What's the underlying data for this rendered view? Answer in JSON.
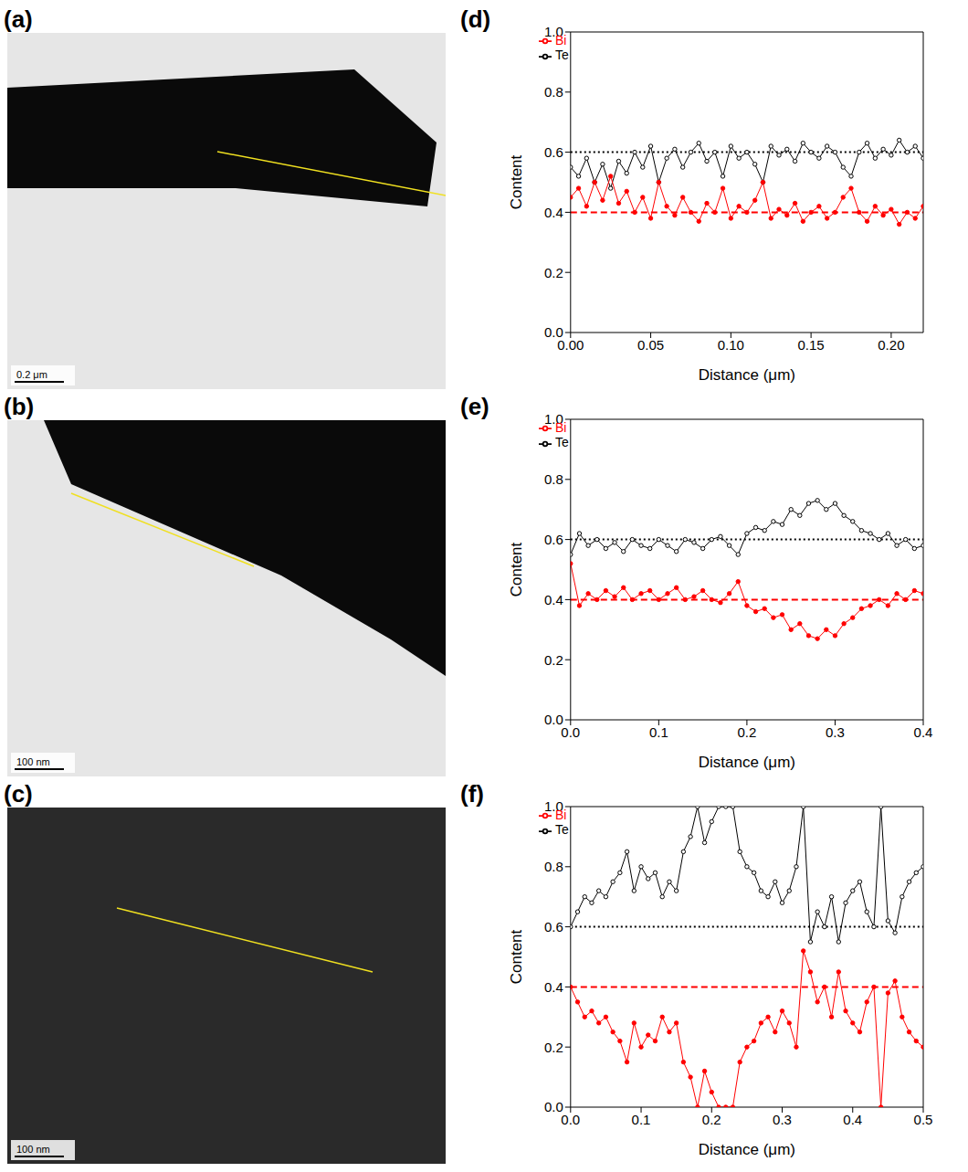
{
  "images": [
    {
      "label": "(a)",
      "scale_bar": "0.2 μm"
    },
    {
      "label": "(b)",
      "scale_bar": "100 nm"
    },
    {
      "label": "(c)",
      "scale_bar": "100 nm"
    }
  ],
  "chart_data": [
    {
      "type": "line",
      "title": "(d)",
      "x_label": "Distance (μm)",
      "y_label": "Content",
      "legend": "upper left",
      "xlim": [
        0,
        0.22
      ],
      "xticks": [
        {
          "value": 0,
          "label": "0.00"
        },
        {
          "value": 0.05,
          "label": "0.05"
        },
        {
          "value": 0.1,
          "label": "0.10"
        },
        {
          "value": 0.15,
          "label": "0.15"
        },
        {
          "value": 0.2,
          "label": "0.20"
        }
      ],
      "ylim": [
        0,
        1
      ],
      "yticks": [
        {
          "value": 0,
          "label": "0.0"
        },
        {
          "value": 0.2,
          "label": "0.2"
        },
        {
          "value": 0.4,
          "label": "0.4"
        },
        {
          "value": 0.6,
          "label": "0.6"
        },
        {
          "value": 0.8,
          "label": "0.8"
        },
        {
          "value": 1,
          "label": "1.0"
        }
      ],
      "hlines": [
        {
          "y": 0.6,
          "color": "#000000",
          "line_style": "dotted"
        },
        {
          "y": 0.4,
          "color": "#ff0000",
          "line_style": "dashed"
        }
      ],
      "x": [
        0,
        0.005,
        0.01,
        0.015,
        0.02,
        0.025,
        0.03,
        0.035,
        0.04,
        0.045,
        0.05,
        0.055,
        0.06,
        0.065,
        0.07,
        0.075,
        0.08,
        0.085,
        0.09,
        0.095,
        0.1,
        0.105,
        0.11,
        0.115,
        0.12,
        0.125,
        0.13,
        0.135,
        0.14,
        0.145,
        0.15,
        0.155,
        0.16,
        0.165,
        0.17,
        0.175,
        0.18,
        0.185,
        0.19,
        0.195,
        0.2,
        0.205,
        0.21,
        0.215,
        0.22
      ],
      "series": [
        {
          "name": "Te",
          "color": "#000000",
          "marker": "open_circle",
          "line_style": "solid",
          "values": [
            0.55,
            0.52,
            0.58,
            0.5,
            0.56,
            0.48,
            0.57,
            0.53,
            0.6,
            0.55,
            0.62,
            0.5,
            0.58,
            0.61,
            0.55,
            0.6,
            0.63,
            0.57,
            0.6,
            0.52,
            0.62,
            0.58,
            0.6,
            0.56,
            0.5,
            0.62,
            0.59,
            0.61,
            0.57,
            0.63,
            0.6,
            0.58,
            0.62,
            0.6,
            0.55,
            0.52,
            0.6,
            0.63,
            0.58,
            0.61,
            0.59,
            0.64,
            0.6,
            0.62,
            0.58
          ]
        },
        {
          "name": "Bi",
          "color": "#ff0000",
          "marker": "circle",
          "line_style": "solid",
          "values": [
            0.45,
            0.48,
            0.42,
            0.5,
            0.44,
            0.52,
            0.43,
            0.47,
            0.4,
            0.45,
            0.38,
            0.5,
            0.42,
            0.39,
            0.45,
            0.4,
            0.37,
            0.43,
            0.4,
            0.48,
            0.38,
            0.42,
            0.4,
            0.44,
            0.5,
            0.38,
            0.41,
            0.39,
            0.43,
            0.37,
            0.4,
            0.42,
            0.38,
            0.4,
            0.45,
            0.48,
            0.4,
            0.37,
            0.42,
            0.39,
            0.41,
            0.36,
            0.4,
            0.38,
            0.42
          ]
        }
      ]
    },
    {
      "type": "line",
      "title": "(e)",
      "x_label": "Distance (μm)",
      "y_label": "Content",
      "legend": "upper left",
      "xlim": [
        0,
        0.4
      ],
      "xticks": [
        {
          "value": 0,
          "label": "0.0"
        },
        {
          "value": 0.1,
          "label": "0.1"
        },
        {
          "value": 0.2,
          "label": "0.2"
        },
        {
          "value": 0.3,
          "label": "0.3"
        },
        {
          "value": 0.4,
          "label": "0.4"
        }
      ],
      "ylim": [
        0,
        1
      ],
      "yticks": [
        {
          "value": 0,
          "label": "0.0"
        },
        {
          "value": 0.2,
          "label": "0.2"
        },
        {
          "value": 0.4,
          "label": "0.4"
        },
        {
          "value": 0.6,
          "label": "0.6"
        },
        {
          "value": 0.8,
          "label": "0.8"
        },
        {
          "value": 1,
          "label": "1.0"
        }
      ],
      "hlines": [
        {
          "y": 0.6,
          "color": "#000000",
          "line_style": "dotted"
        },
        {
          "y": 0.4,
          "color": "#ff0000",
          "line_style": "dashed"
        }
      ],
      "x": [
        0,
        0.01,
        0.02,
        0.03,
        0.04,
        0.05,
        0.06,
        0.07,
        0.08,
        0.09,
        0.1,
        0.11,
        0.12,
        0.13,
        0.14,
        0.15,
        0.16,
        0.17,
        0.18,
        0.19,
        0.2,
        0.21,
        0.22,
        0.23,
        0.24,
        0.25,
        0.26,
        0.27,
        0.28,
        0.29,
        0.3,
        0.31,
        0.32,
        0.33,
        0.34,
        0.35,
        0.36,
        0.37,
        0.38,
        0.39,
        0.4
      ],
      "series": [
        {
          "name": "Te",
          "color": "#000000",
          "marker": "open_circle",
          "line_style": "solid",
          "values": [
            0.55,
            0.62,
            0.58,
            0.6,
            0.57,
            0.59,
            0.56,
            0.6,
            0.58,
            0.57,
            0.6,
            0.58,
            0.56,
            0.6,
            0.59,
            0.57,
            0.6,
            0.61,
            0.58,
            0.55,
            0.62,
            0.64,
            0.63,
            0.66,
            0.65,
            0.7,
            0.68,
            0.72,
            0.73,
            0.7,
            0.72,
            0.68,
            0.66,
            0.63,
            0.62,
            0.6,
            0.62,
            0.58,
            0.6,
            0.57,
            0.58
          ]
        },
        {
          "name": "Bi",
          "color": "#ff0000",
          "marker": "circle",
          "line_style": "solid",
          "values": [
            0.52,
            0.38,
            0.42,
            0.4,
            0.43,
            0.41,
            0.44,
            0.4,
            0.42,
            0.43,
            0.4,
            0.42,
            0.44,
            0.4,
            0.41,
            0.43,
            0.4,
            0.39,
            0.42,
            0.46,
            0.38,
            0.36,
            0.37,
            0.34,
            0.35,
            0.3,
            0.32,
            0.28,
            0.27,
            0.3,
            0.28,
            0.32,
            0.34,
            0.37,
            0.38,
            0.4,
            0.38,
            0.42,
            0.4,
            0.43,
            0.42
          ]
        }
      ]
    },
    {
      "type": "line",
      "title": "(f)",
      "x_label": "Distance (μm)",
      "y_label": "Content",
      "legend": "upper left",
      "xlim": [
        0,
        0.5
      ],
      "xticks": [
        {
          "value": 0,
          "label": "0.0"
        },
        {
          "value": 0.1,
          "label": "0.1"
        },
        {
          "value": 0.2,
          "label": "0.2"
        },
        {
          "value": 0.3,
          "label": "0.3"
        },
        {
          "value": 0.4,
          "label": "0.4"
        },
        {
          "value": 0.5,
          "label": "0.5"
        }
      ],
      "ylim": [
        0,
        1
      ],
      "yticks": [
        {
          "value": 0,
          "label": "0.0"
        },
        {
          "value": 0.2,
          "label": "0.2"
        },
        {
          "value": 0.4,
          "label": "0.4"
        },
        {
          "value": 0.6,
          "label": "0.6"
        },
        {
          "value": 0.8,
          "label": "0.8"
        },
        {
          "value": 1,
          "label": "1.0"
        }
      ],
      "hlines": [
        {
          "y": 0.6,
          "color": "#000000",
          "line_style": "dotted"
        },
        {
          "y": 0.4,
          "color": "#ff0000",
          "line_style": "dashed"
        }
      ],
      "x": [
        0,
        0.01,
        0.02,
        0.03,
        0.04,
        0.05,
        0.06,
        0.07,
        0.08,
        0.09,
        0.1,
        0.11,
        0.12,
        0.13,
        0.14,
        0.15,
        0.16,
        0.17,
        0.18,
        0.19,
        0.2,
        0.21,
        0.22,
        0.23,
        0.24,
        0.25,
        0.26,
        0.27,
        0.28,
        0.29,
        0.3,
        0.31,
        0.32,
        0.33,
        0.34,
        0.35,
        0.36,
        0.37,
        0.38,
        0.39,
        0.4,
        0.41,
        0.42,
        0.43,
        0.44,
        0.45,
        0.46,
        0.47,
        0.48,
        0.49,
        0.5
      ],
      "series": [
        {
          "name": "Te",
          "color": "#000000",
          "marker": "open_circle",
          "line_style": "solid",
          "values": [
            0.6,
            0.65,
            0.7,
            0.68,
            0.72,
            0.7,
            0.75,
            0.78,
            0.85,
            0.72,
            0.8,
            0.76,
            0.78,
            0.7,
            0.75,
            0.72,
            0.85,
            0.9,
            1.0,
            0.88,
            0.95,
            1.0,
            1.0,
            1.0,
            0.85,
            0.8,
            0.78,
            0.72,
            0.7,
            0.75,
            0.68,
            0.72,
            0.8,
            1.0,
            0.55,
            0.65,
            0.6,
            0.7,
            0.55,
            0.68,
            0.72,
            0.75,
            0.65,
            0.6,
            1.0,
            0.62,
            0.58,
            0.7,
            0.75,
            0.78,
            0.8
          ]
        },
        {
          "name": "Bi",
          "color": "#ff0000",
          "marker": "circle",
          "line_style": "solid",
          "values": [
            0.4,
            0.35,
            0.3,
            0.32,
            0.28,
            0.3,
            0.25,
            0.22,
            0.15,
            0.28,
            0.2,
            0.24,
            0.22,
            0.3,
            0.25,
            0.28,
            0.15,
            0.1,
            0.0,
            0.12,
            0.05,
            0.0,
            0.0,
            0.0,
            0.15,
            0.2,
            0.22,
            0.28,
            0.3,
            0.25,
            0.32,
            0.28,
            0.2,
            0.52,
            0.45,
            0.35,
            0.4,
            0.3,
            0.45,
            0.32,
            0.28,
            0.25,
            0.35,
            0.4,
            0.0,
            0.38,
            0.42,
            0.3,
            0.25,
            0.22,
            0.2
          ]
        }
      ]
    }
  ]
}
